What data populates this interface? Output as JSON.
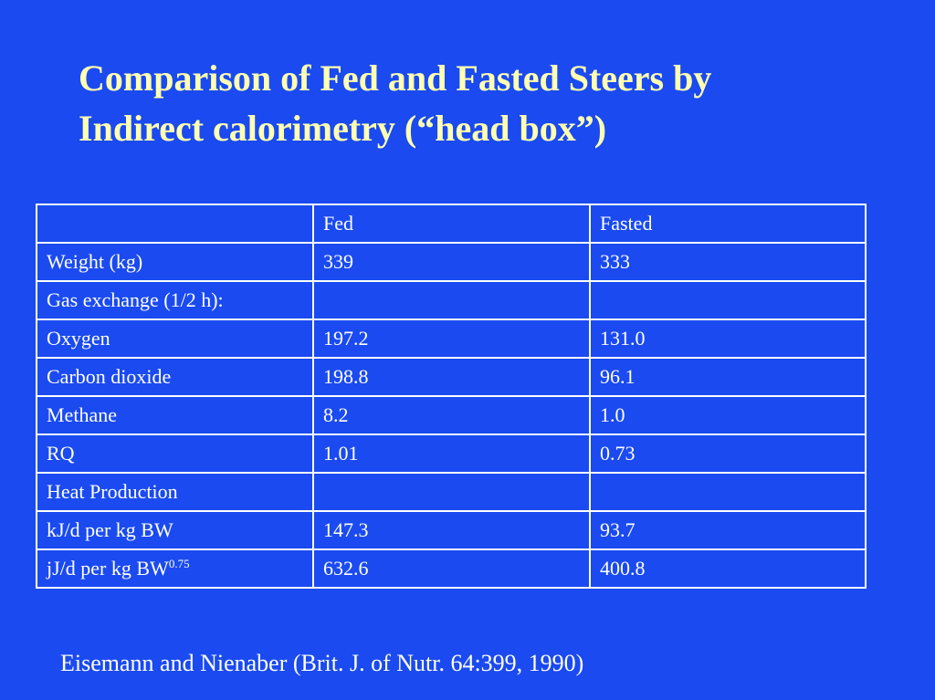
{
  "title": {
    "line1": "Comparison of Fed and Fasted Steers by",
    "line2": "Indirect calorimetry (“head box”)"
  },
  "table": {
    "headers": [
      "",
      "Fed",
      "Fasted"
    ],
    "rows": [
      {
        "label": "Weight (kg)",
        "label_sup": "",
        "fed": "339",
        "fasted": "333"
      },
      {
        "label": "Gas exchange (1/2 h):",
        "label_sup": "",
        "fed": "",
        "fasted": ""
      },
      {
        "label": "Oxygen",
        "label_sup": "",
        "fed": "197.2",
        "fasted": "131.0"
      },
      {
        "label": "Carbon dioxide",
        "label_sup": "",
        "fed": "198.8",
        "fasted": "96.1"
      },
      {
        "label": "Methane",
        "label_sup": "",
        "fed": "8.2",
        "fasted": "1.0"
      },
      {
        "label": "RQ",
        "label_sup": "",
        "fed": "1.01",
        "fasted": "0.73"
      },
      {
        "label": "Heat Production",
        "label_sup": "",
        "fed": "",
        "fasted": ""
      },
      {
        "label": "kJ/d per kg BW",
        "label_sup": "",
        "fed": "147.3",
        "fasted": "93.7"
      },
      {
        "label": "jJ/d per kg BW",
        "label_sup": "0.75",
        "fed": "632.6",
        "fasted": "400.8"
      }
    ]
  },
  "citation": "Eisemann and Nienaber (Brit. J. of Nutr. 64:399, 1990)",
  "colors": {
    "background": "#1a4af0",
    "title": "#ffffb0",
    "text": "#ffffff"
  }
}
